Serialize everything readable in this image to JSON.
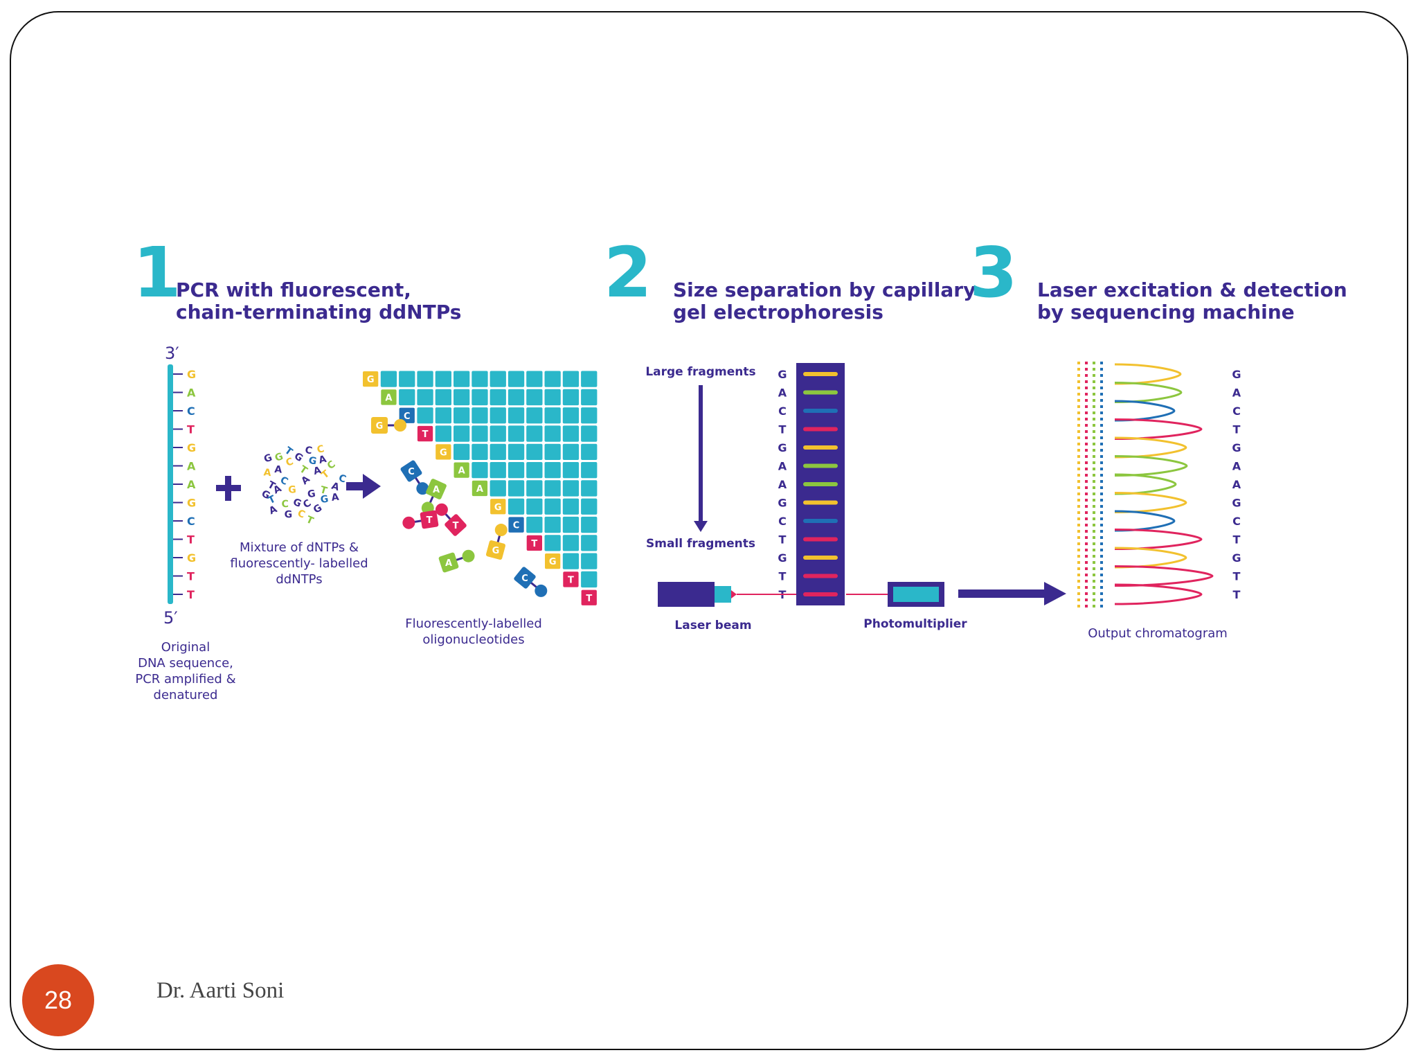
{
  "footer": {
    "page_number": "28",
    "author": "Dr. Aarti Soni"
  },
  "colors": {
    "G": "#f2c12e",
    "A": "#8cc63f",
    "C": "#1f6fb5",
    "T": "#e0245e",
    "teal": "#2ab7c9",
    "purple": "#3b2a8f"
  },
  "steps": [
    {
      "number": "1",
      "title_line1": "PCR with fluorescent,",
      "title_line2": "chain-terminating ddNTPs"
    },
    {
      "number": "2",
      "title_line1": "Size separation by capillary",
      "title_line2": "gel electrophoresis"
    },
    {
      "number": "3",
      "title_line1": "Laser excitation & detection",
      "title_line2": "by sequencing machine"
    }
  ],
  "dna": {
    "top_end": "3′",
    "bottom_end": "5′",
    "caption": [
      "Original",
      "DNA sequence,",
      "PCR amplified &",
      "denatured"
    ]
  },
  "sequence": [
    "G",
    "A",
    "C",
    "T",
    "G",
    "A",
    "A",
    "G",
    "C",
    "T",
    "G",
    "T",
    "T"
  ],
  "mixture": {
    "caption": [
      "Mixture of dNTPs &",
      "fluorescently- labelled",
      "ddNTPs"
    ]
  },
  "oligos": {
    "caption": [
      "Fluorescently-labelled",
      "oligonucleotides"
    ]
  },
  "electrophoresis": {
    "large_label": "Large fragments",
    "small_label": "Small fragments",
    "laser_label": "Laser beam",
    "detector_label": "Photomultiplier"
  },
  "chromatogram": {
    "caption": "Output chromatogram"
  }
}
